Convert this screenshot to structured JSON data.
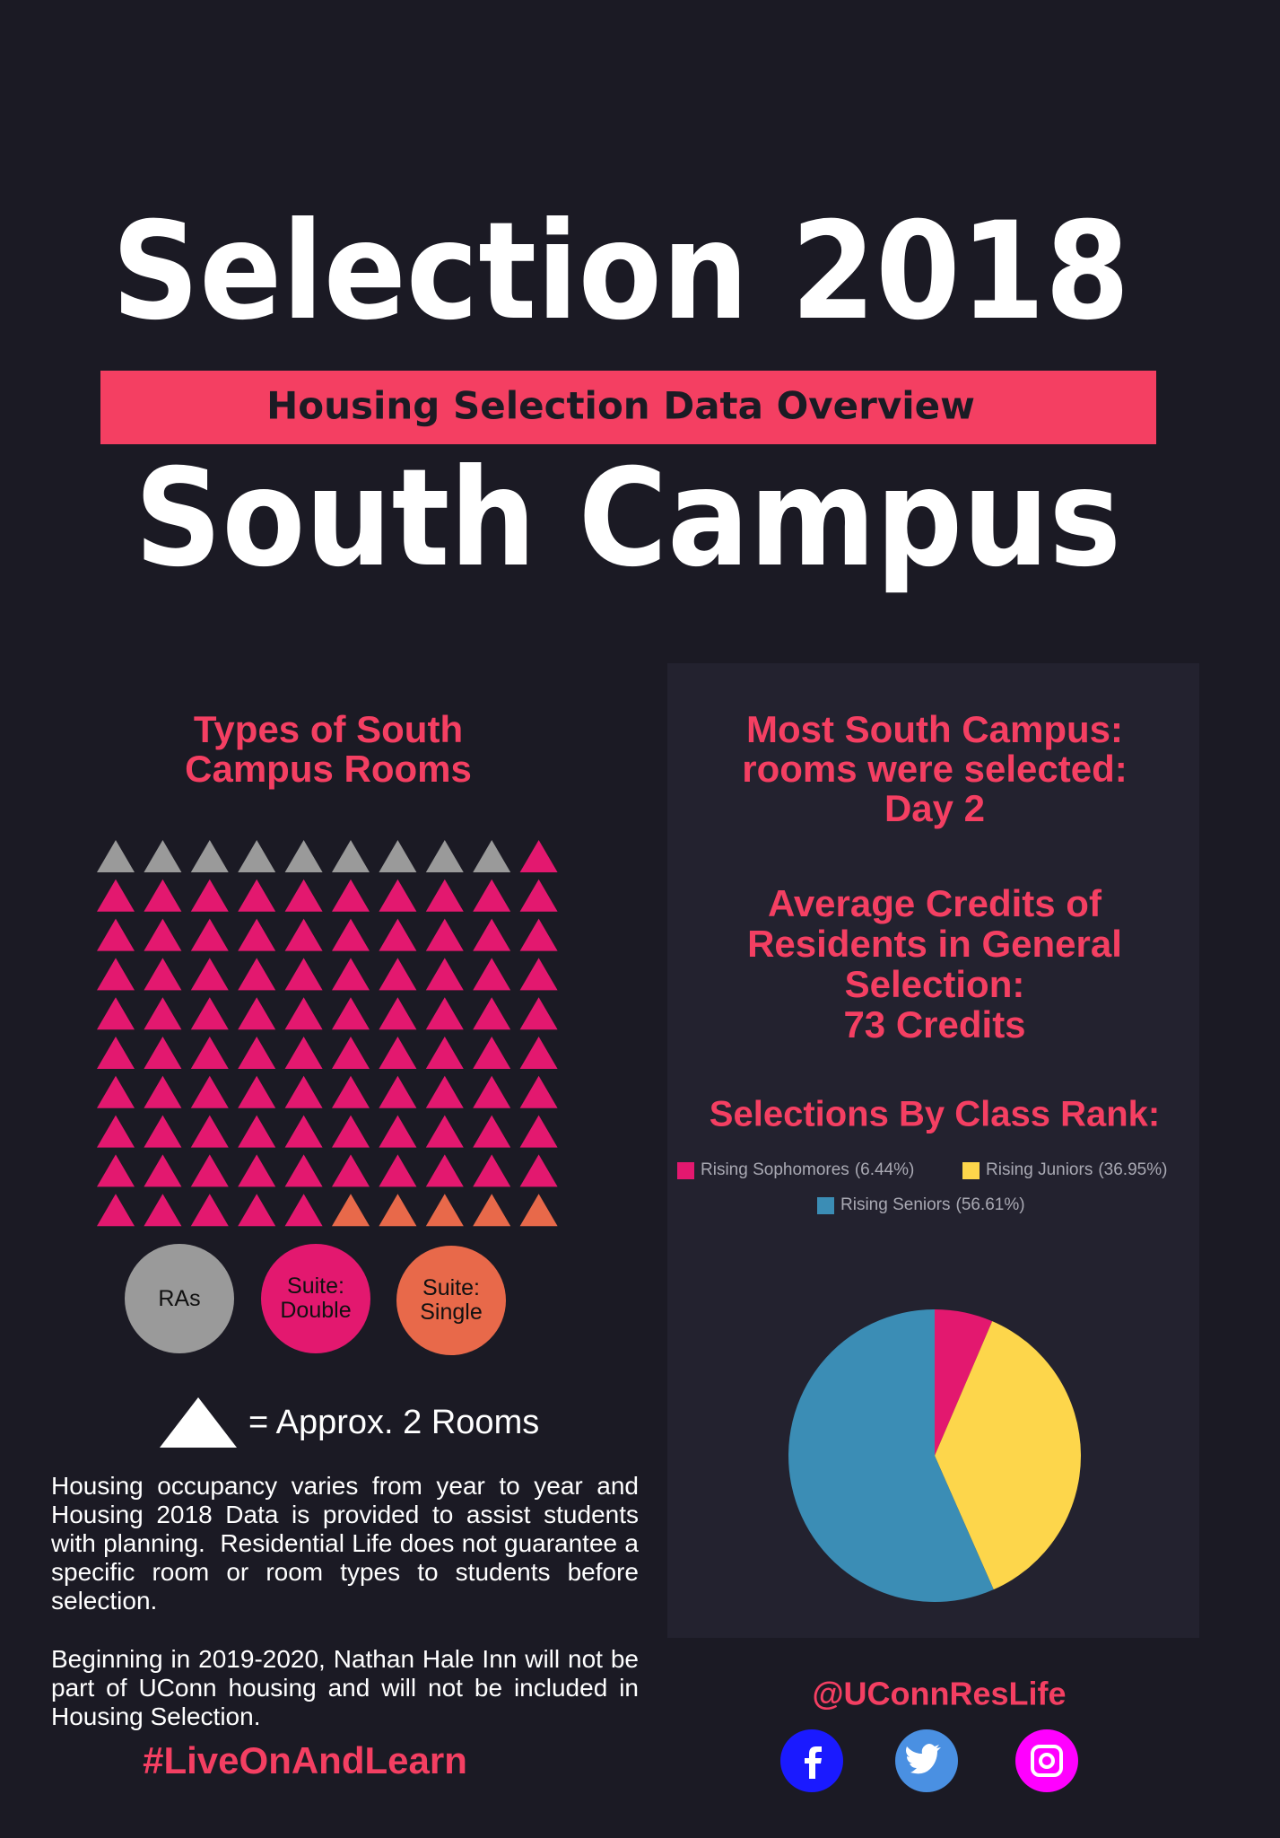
{
  "header": {
    "title": "Selection 2018",
    "subtitle": "Housing Selection Data Overview",
    "campus": "South Campus"
  },
  "rooms_heading": [
    "Types of South",
    "Campus Rooms"
  ],
  "facts": [
    [
      "Most South Campus:",
      "rooms were selected:",
      "Day 2"
    ],
    [
      "Average Credits of",
      "Residents in General",
      "Selection:",
      "73 Credits"
    ]
  ],
  "chart_data": [
    {
      "type": "waffle",
      "categories": [
        "RAs",
        "Suite: Double",
        "Suite: Single"
      ],
      "values": [
        9,
        86,
        5
      ],
      "colors": [
        "#9a9a9a",
        "#e3186f",
        "#e8694a"
      ],
      "unit_label": "= Approx. 2 Rooms"
    },
    {
      "type": "pie",
      "title": "Selections By Class Rank:",
      "categories": [
        "Rising Sophomores",
        "Rising Juniors",
        "Rising Seniors"
      ],
      "values": [
        6.44,
        36.95,
        56.61
      ],
      "value_labels": [
        "(6.44%)",
        "(36.95%)",
        "(56.61%)"
      ],
      "colors": [
        "#e3186f",
        "#fdd64b",
        "#3b8db5"
      ]
    }
  ],
  "notes": [
    "Housing occupancy varies from year to year and Housing 2018 Data is provided to assist students with planning.  Residential Life does not guarantee a specific room or room types to students before selection.",
    "Beginning in 2019-2020, Nathan Hale Inn will not be part of UConn housing and will not be included in Housing Selection."
  ],
  "hashtag": "#LiveOnAndLearn",
  "handle": "@UConnResLife"
}
